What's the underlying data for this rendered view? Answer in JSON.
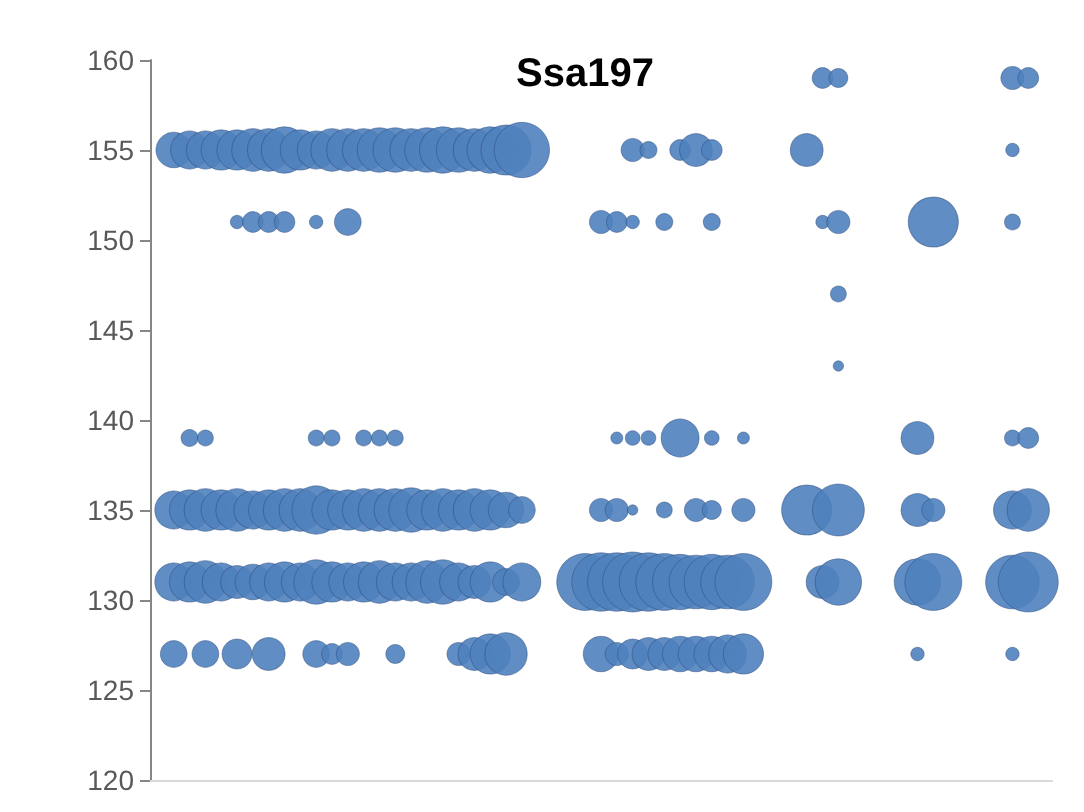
{
  "chart_data": {
    "type": "bubble",
    "title": "Ssa197",
    "categories": [
      null,
      null,
      null,
      null,
      null,
      null,
      null,
      null,
      null,
      null,
      null,
      null,
      null,
      null,
      null,
      null,
      null,
      null,
      null,
      null,
      null,
      null,
      null,
      null,
      null,
      null,
      null,
      null,
      null,
      null,
      null,
      null,
      null,
      null,
      null,
      null,
      null,
      null,
      null,
      null,
      null,
      null,
      null,
      null,
      null,
      null,
      null,
      null,
      null,
      null,
      null,
      null,
      null,
      null,
      null,
      null,
      null
    ],
    "ylim": [
      120,
      160
    ],
    "yticks": [
      120,
      125,
      130,
      135,
      140,
      145,
      150,
      155,
      160
    ],
    "series": [
      {
        "color": "#4f81bd",
        "values": [
          null,
          null,
          null,
          null,
          null,
          null,
          null,
          null,
          null,
          null,
          null,
          null,
          null,
          null,
          null,
          null,
          null,
          null,
          null,
          null,
          null,
          null,
          null,
          null,
          null,
          null,
          null,
          null,
          null,
          null,
          null,
          null,
          null,
          null,
          null,
          null,
          null,
          null,
          null,
          null,
          null,
          null,
          159,
          159,
          null,
          null,
          null,
          null,
          null,
          null,
          null,
          null,
          null,
          null,
          159,
          159,
          null
        ],
        "sizes": [
          null,
          null,
          null,
          null,
          null,
          null,
          null,
          null,
          null,
          null,
          null,
          null,
          null,
          null,
          null,
          null,
          null,
          null,
          null,
          null,
          null,
          null,
          null,
          null,
          null,
          null,
          null,
          null,
          null,
          null,
          null,
          null,
          null,
          null,
          null,
          null,
          null,
          null,
          null,
          null,
          null,
          null,
          0.12,
          0.1,
          null,
          null,
          null,
          null,
          null,
          null,
          null,
          null,
          null,
          null,
          0.15,
          0.12,
          null
        ]
      },
      {
        "color": "#4f81bd",
        "values": [
          null,
          155,
          155,
          155,
          155,
          155,
          155,
          155,
          155,
          155,
          155,
          155,
          155,
          155,
          155,
          155,
          155,
          155,
          155,
          155,
          155,
          155,
          155,
          155,
          null,
          null,
          null,
          null,
          null,
          null,
          155,
          155,
          null,
          155,
          155,
          155,
          null,
          null,
          null,
          null,
          null,
          155,
          null,
          null,
          null,
          null,
          null,
          null,
          null,
          null,
          null,
          null,
          null,
          null,
          155,
          null,
          null
        ],
        "sizes": [
          null,
          0.35,
          0.4,
          0.4,
          0.45,
          0.45,
          0.5,
          0.5,
          0.6,
          0.45,
          0.4,
          0.5,
          0.5,
          0.5,
          0.55,
          0.55,
          0.5,
          0.55,
          0.6,
          0.55,
          0.5,
          0.6,
          0.7,
          0.85,
          null,
          null,
          null,
          null,
          null,
          null,
          0.15,
          0.08,
          null,
          0.12,
          0.3,
          0.12,
          null,
          null,
          null,
          null,
          null,
          0.3,
          null,
          null,
          null,
          null,
          null,
          null,
          null,
          null,
          null,
          null,
          null,
          null,
          0.05,
          null,
          null
        ]
      },
      {
        "color": "#4f81bd",
        "values": [
          null,
          null,
          null,
          null,
          null,
          151,
          151,
          151,
          151,
          null,
          151,
          null,
          151,
          null,
          null,
          null,
          null,
          null,
          null,
          null,
          null,
          null,
          null,
          null,
          null,
          null,
          null,
          null,
          151,
          151,
          151,
          null,
          151,
          null,
          null,
          151,
          null,
          null,
          null,
          null,
          null,
          null,
          151,
          151,
          null,
          null,
          null,
          null,
          null,
          151,
          null,
          null,
          null,
          null,
          151,
          null,
          null
        ],
        "sizes": [
          null,
          null,
          null,
          null,
          null,
          0.05,
          0.12,
          0.12,
          0.12,
          null,
          0.05,
          null,
          0.2,
          null,
          null,
          null,
          null,
          null,
          null,
          null,
          null,
          null,
          null,
          null,
          null,
          null,
          null,
          null,
          0.15,
          0.12,
          0.05,
          null,
          0.08,
          null,
          null,
          0.08,
          null,
          null,
          null,
          null,
          null,
          null,
          0.05,
          0.15,
          null,
          null,
          null,
          null,
          null,
          0.7,
          null,
          null,
          null,
          null,
          0.07,
          null,
          null
        ]
      },
      {
        "color": "#4f81bd",
        "values": [
          null,
          null,
          null,
          null,
          null,
          null,
          null,
          null,
          null,
          null,
          null,
          null,
          null,
          null,
          null,
          null,
          null,
          null,
          null,
          null,
          null,
          null,
          null,
          null,
          null,
          null,
          null,
          null,
          null,
          null,
          null,
          null,
          null,
          null,
          null,
          null,
          null,
          null,
          null,
          null,
          null,
          null,
          null,
          147,
          null,
          null,
          null,
          null,
          null,
          null,
          null,
          null,
          null,
          null,
          null,
          null,
          null
        ],
        "sizes": [
          null,
          null,
          null,
          null,
          null,
          null,
          null,
          null,
          null,
          null,
          null,
          null,
          null,
          null,
          null,
          null,
          null,
          null,
          null,
          null,
          null,
          null,
          null,
          null,
          null,
          null,
          null,
          null,
          null,
          null,
          null,
          null,
          null,
          null,
          null,
          null,
          null,
          null,
          null,
          null,
          null,
          null,
          null,
          0.07,
          null,
          null,
          null,
          null,
          null,
          null,
          null,
          null,
          null,
          null,
          null,
          null,
          null
        ]
      },
      {
        "color": "#4f81bd",
        "values": [
          null,
          null,
          null,
          null,
          null,
          null,
          null,
          null,
          null,
          null,
          null,
          null,
          null,
          null,
          null,
          null,
          null,
          null,
          null,
          null,
          null,
          null,
          null,
          null,
          null,
          null,
          null,
          null,
          null,
          null,
          null,
          null,
          null,
          null,
          null,
          null,
          null,
          null,
          null,
          null,
          null,
          null,
          null,
          143,
          null,
          null,
          null,
          null,
          null,
          null,
          null,
          null,
          null,
          null,
          null,
          null,
          null
        ],
        "sizes": [
          null,
          null,
          null,
          null,
          null,
          null,
          null,
          null,
          null,
          null,
          null,
          null,
          null,
          null,
          null,
          null,
          null,
          null,
          null,
          null,
          null,
          null,
          null,
          null,
          null,
          null,
          null,
          null,
          null,
          null,
          null,
          null,
          null,
          null,
          null,
          null,
          null,
          null,
          null,
          null,
          null,
          null,
          null,
          0.03,
          null,
          null,
          null,
          null,
          null,
          null,
          null,
          null,
          null,
          null,
          null,
          null,
          null
        ]
      },
      {
        "color": "#4f81bd",
        "values": [
          null,
          null,
          139,
          139,
          null,
          null,
          null,
          null,
          null,
          null,
          139,
          139,
          null,
          139,
          139,
          139,
          null,
          null,
          null,
          null,
          null,
          null,
          null,
          null,
          null,
          null,
          null,
          null,
          null,
          139,
          139,
          139,
          null,
          139,
          null,
          139,
          null,
          139,
          null,
          null,
          null,
          null,
          null,
          null,
          null,
          null,
          null,
          null,
          139,
          null,
          null,
          null,
          null,
          null,
          139,
          139,
          null
        ],
        "sizes": [
          null,
          null,
          0.08,
          0.07,
          null,
          null,
          null,
          null,
          null,
          null,
          0.07,
          0.07,
          null,
          0.07,
          0.07,
          0.07,
          null,
          null,
          null,
          null,
          null,
          null,
          null,
          null,
          null,
          null,
          null,
          null,
          null,
          0.04,
          0.06,
          0.06,
          null,
          0.4,
          null,
          0.06,
          null,
          0.04,
          null,
          null,
          null,
          null,
          null,
          null,
          null,
          null,
          null,
          null,
          0.3,
          null,
          null,
          null,
          null,
          null,
          0.07,
          0.12,
          null
        ]
      },
      {
        "color": "#4f81bd",
        "values": [
          null,
          135,
          135,
          135,
          135,
          135,
          135,
          135,
          135,
          135,
          135,
          135,
          135,
          135,
          135,
          135,
          135,
          135,
          135,
          135,
          135,
          135,
          135,
          135,
          null,
          null,
          null,
          null,
          135,
          135,
          135,
          null,
          135,
          null,
          135,
          135,
          null,
          135,
          null,
          null,
          null,
          135,
          null,
          135,
          null,
          null,
          null,
          null,
          135,
          135,
          null,
          null,
          null,
          null,
          135,
          135,
          null
        ],
        "sizes": [
          null,
          0.4,
          0.45,
          0.5,
          0.45,
          0.5,
          0.4,
          0.45,
          0.5,
          0.5,
          0.65,
          0.45,
          0.45,
          0.5,
          0.5,
          0.5,
          0.55,
          0.45,
          0.5,
          0.45,
          0.5,
          0.45,
          0.35,
          0.2,
          null,
          null,
          null,
          null,
          0.15,
          0.15,
          0.03,
          null,
          0.07,
          null,
          0.15,
          0.1,
          null,
          0.15,
          null,
          null,
          null,
          0.7,
          null,
          0.75,
          null,
          null,
          null,
          null,
          0.3,
          0.15,
          null,
          null,
          null,
          null,
          0.4,
          0.5,
          null
        ]
      },
      {
        "color": "#4f81bd",
        "values": [
          null,
          131,
          131,
          131,
          131,
          131,
          131,
          131,
          131,
          131,
          131,
          131,
          131,
          131,
          131,
          131,
          131,
          131,
          131,
          131,
          131,
          131,
          131,
          131,
          null,
          null,
          null,
          131,
          131,
          131,
          131,
          131,
          131,
          131,
          131,
          131,
          131,
          131,
          null,
          null,
          null,
          null,
          131,
          131,
          null,
          null,
          null,
          null,
          131,
          131,
          null,
          null,
          null,
          null,
          131,
          131,
          null
        ],
        "sizes": [
          null,
          0.4,
          0.45,
          0.5,
          0.4,
          0.3,
          0.35,
          0.4,
          0.45,
          0.4,
          0.55,
          0.45,
          0.4,
          0.45,
          0.5,
          0.4,
          0.4,
          0.5,
          0.55,
          0.4,
          0.3,
          0.45,
          0.2,
          0.4,
          null,
          null,
          null,
          0.9,
          0.95,
          0.95,
          1,
          0.95,
          0.9,
          0.85,
          0.8,
          0.85,
          0.8,
          0.9,
          null,
          null,
          null,
          null,
          0.3,
          0.6,
          null,
          null,
          null,
          null,
          0.6,
          0.9,
          null,
          null,
          null,
          null,
          0.8,
          1,
          null
        ]
      },
      {
        "color": "#4f81bd",
        "values": [
          null,
          127,
          null,
          127,
          null,
          127,
          null,
          127,
          null,
          null,
          127,
          127,
          127,
          null,
          null,
          127,
          null,
          null,
          null,
          127,
          127,
          127,
          127,
          null,
          null,
          null,
          null,
          null,
          127,
          127,
          127,
          127,
          127,
          127,
          127,
          127,
          127,
          127,
          null,
          null,
          null,
          null,
          null,
          null,
          null,
          null,
          null,
          null,
          127,
          null,
          null,
          null,
          null,
          null,
          127,
          null,
          null
        ],
        "sizes": [
          null,
          0.2,
          null,
          0.2,
          null,
          0.25,
          null,
          0.3,
          null,
          null,
          0.2,
          0.12,
          0.15,
          null,
          null,
          0.1,
          null,
          null,
          null,
          0.15,
          0.3,
          0.45,
          0.5,
          null,
          null,
          null,
          null,
          null,
          0.35,
          0.15,
          0.25,
          0.3,
          0.3,
          0.35,
          0.35,
          0.35,
          0.4,
          0.45,
          null,
          null,
          null,
          null,
          null,
          null,
          null,
          null,
          null,
          null,
          0.05,
          null,
          null,
          null,
          null,
          null,
          0.05,
          null,
          null
        ]
      }
    ]
  }
}
